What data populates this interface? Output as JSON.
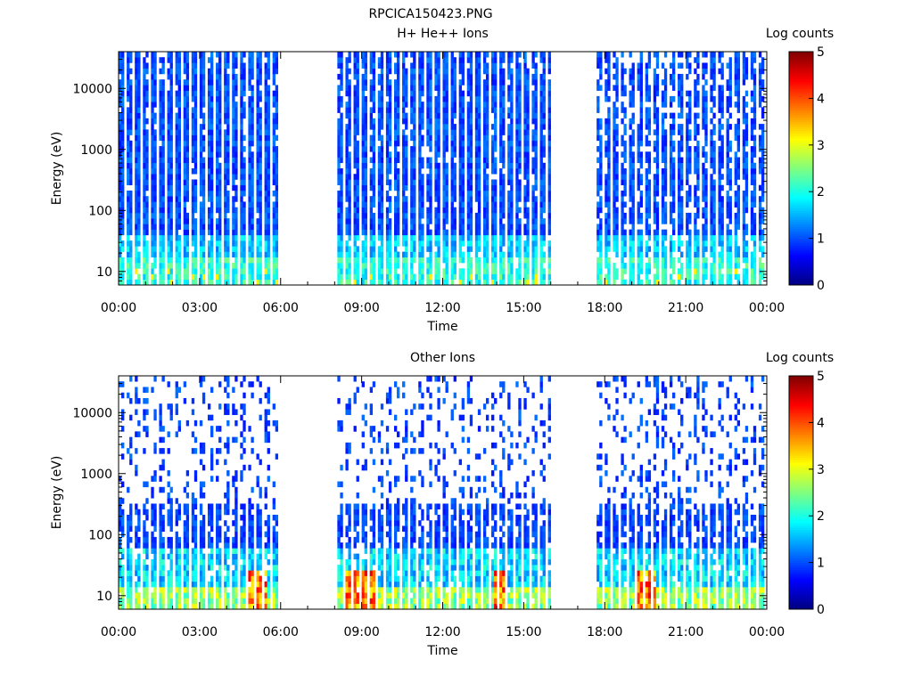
{
  "figure": {
    "title": "RPCICA150423.PNG"
  },
  "colorbar": {
    "label": "Log counts",
    "ticks": [
      "0",
      "1",
      "2",
      "3",
      "4",
      "5"
    ],
    "range": [
      0,
      5
    ],
    "colormap": "jet"
  },
  "chart_data": [
    {
      "type": "heatmap",
      "title": "H+ He++ Ions",
      "xlabel": "Time",
      "ylabel": "Energy (eV)",
      "x_tick_labels": [
        "00:00",
        "03:00",
        "06:00",
        "09:00",
        "12:00",
        "15:00",
        "18:00",
        "21:00",
        "00:00"
      ],
      "x_range_hours": [
        0,
        24
      ],
      "y_scale": "log",
      "y_tick_labels": [
        "10",
        "100",
        "1000",
        "10000"
      ],
      "y_range": [
        6,
        40000
      ],
      "data_gaps_hours": [
        [
          5.9,
          8.0
        ],
        [
          15.9,
          17.6
        ]
      ],
      "stripe_pattern": "regular sweeps with white gaps; background level ~1",
      "low_energy_level": 2.3,
      "peak_level": 3.2
    },
    {
      "type": "heatmap",
      "title": "Other Ions",
      "xlabel": "Time",
      "ylabel": "Energy (eV)",
      "x_tick_labels": [
        "00:00",
        "03:00",
        "06:00",
        "09:00",
        "12:00",
        "15:00",
        "18:00",
        "21:00",
        "00:00"
      ],
      "x_range_hours": [
        0,
        24
      ],
      "y_scale": "log",
      "y_tick_labels": [
        "10",
        "100",
        "1000",
        "10000"
      ],
      "y_range": [
        6,
        40000
      ],
      "data_gaps_hours": [
        [
          5.9,
          8.0
        ],
        [
          15.9,
          17.6
        ]
      ],
      "stripe_pattern": "sparse at high energy, denser below ~1000 eV",
      "low_energy_level": 2.8,
      "peak_level": 4.5
    }
  ]
}
